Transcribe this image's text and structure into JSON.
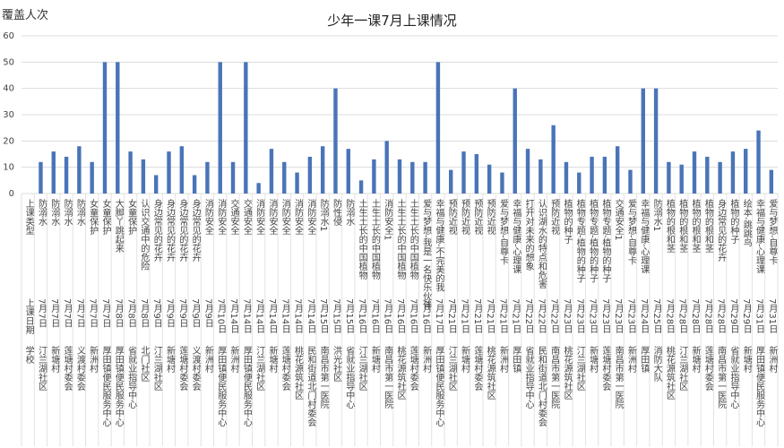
{
  "chart_data": {
    "type": "bar",
    "title": "少年一课7月上课情况",
    "y_label": "覆盖人次",
    "color": "#4a74b8",
    "grid": true,
    "ylim": [
      0,
      60
    ],
    "yticks": [
      0,
      10,
      20,
      30,
      40,
      50,
      60
    ],
    "categories": [
      "上课类型",
      "防溺水",
      "防溺水",
      "防溺水",
      "防溺水",
      "女童保护",
      "女童保护",
      "大脚丫跳起来",
      "女童保护",
      "认识交通中的危险",
      "身边常见的花卉",
      "身边常见的花卉",
      "身边常见的花卉",
      "身边常见的花卉",
      "消防安全",
      "消防安全",
      "交通安全",
      "交通安全",
      "消防安全",
      "消防安全",
      "消防安全",
      "消防安全",
      "消防安全",
      "防溺水1",
      "防性侵",
      "防溺水",
      "土生土长的中国植物",
      "土生土长的中国植物",
      "消防安全1",
      "土生土长的中国植物",
      "土生土长的中国植物",
      "爱与梦想-我是一名快乐伙伴",
      "幸福与健康-不完美的我",
      "预防近视",
      "预防近视",
      "预防近视",
      "预防近视",
      "爱与梦想-自尊卡",
      "幸福与健康-心理课",
      "打开对未来的想象",
      "认识湖水的特点和危害",
      "预防近视",
      "植物的种子",
      "植物专题-植物的种子",
      "植物专题-植物的种子",
      "植物专题-植物的种子",
      "交通安全1",
      "爱与梦想-自尊卡",
      "幸福与健康-心理课",
      "防溺水1",
      "植物的根和茎",
      "植物的根和茎",
      "植物的根和茎",
      "植物的根和茎",
      "身边常见的花卉",
      "植物的种子",
      "绘本-跳跳鸟",
      "幸福与健康-心理课",
      "爱与梦想-自尊卡"
    ],
    "dates": [
      "上课日期",
      "7月7日",
      "7月7日",
      "7月7日",
      "7月7日",
      "7月7日",
      "7月7日",
      "7月8日",
      "7月8日",
      "7月8日",
      "7月9日",
      "7月9日",
      "7月9日",
      "7月9日",
      "7月9日",
      "7月10日",
      "7月14日",
      "7月14日",
      "7月14日",
      "7月14日",
      "7月14日",
      "7月14日",
      "7月14日",
      "7月15日",
      "7月15日",
      "7月15日",
      "7月16日",
      "7月16日",
      "7月16日",
      "7月16日",
      "7月16日",
      "7月16日",
      "7月17日",
      "7月21日",
      "7月21日",
      "7月21日",
      "7月21日",
      "7月21日",
      "7月21日",
      "7月22日",
      "7月22日",
      "7月22日",
      "7月23日",
      "7月23日",
      "7月23日",
      "7月23日",
      "7月23日",
      "7月23日",
      "7月24日",
      "7月25日",
      "7月28日",
      "7月28日",
      "7月28日",
      "7月28日",
      "7月28日",
      "7月29日",
      "7月29日",
      "7月31日",
      "7月31日"
    ],
    "schools": [
      "学校",
      "汀兰湖社区",
      "新塘村",
      "莲塘村委会",
      "义渡村委会",
      "新洲村",
      "厚田镇便民服务中心",
      "厚田镇便民服务中心",
      "省就业指导中心",
      "北门社区",
      "汀兰湖社区",
      "新塘村",
      "莲塘村委会",
      "义渡村委会",
      "新洲村",
      "厚田镇便民服务中心",
      "新洲村",
      "厚田镇便民服务中心",
      "汀兰湖社区",
      "新塘村",
      "莲塘村委会",
      "桃花源筑社区",
      "民和街道北门村委会",
      "南昌市第一医院",
      "洪光社区",
      "省就业指导中心",
      "汀兰湖社区",
      "新塘村",
      "南昌市第一医院",
      "桃花源筑社区",
      "莲塘村委会",
      "新洲村",
      "厚田镇便民服务中心",
      "汀兰湖社区",
      "新塘村",
      "莲塘村委会",
      "桃花源筑社区",
      "新洲村",
      "厚田镇",
      "省就业指导中心",
      "民和街道北门村委会",
      "南昌市第一医院",
      "桃花源筑社区",
      "汀兰湖社区",
      "新塘村",
      "莲塘村委会",
      "南昌市第一医院",
      "新洲村",
      "厚田镇",
      "消防大队",
      "桃花源筑社区",
      "汀兰湖社区",
      "新塘村",
      "莲塘村委会",
      "南昌市第一医院",
      "省就业指导中心",
      "新塘村",
      "厚田镇便民服务中心",
      "新洲村"
    ],
    "values": [
      null,
      12,
      16,
      14,
      18,
      12,
      50,
      50,
      16,
      13,
      7,
      16,
      18,
      7,
      12,
      50,
      12,
      50,
      4,
      17,
      12,
      8,
      14,
      18,
      40,
      17,
      5,
      13,
      20,
      13,
      12,
      12,
      50,
      9,
      16,
      15,
      11,
      8,
      40,
      17,
      13,
      26,
      12,
      8,
      14,
      14,
      18,
      9,
      40,
      40,
      12,
      11,
      16,
      14,
      12,
      16,
      17,
      24,
      9
    ]
  }
}
